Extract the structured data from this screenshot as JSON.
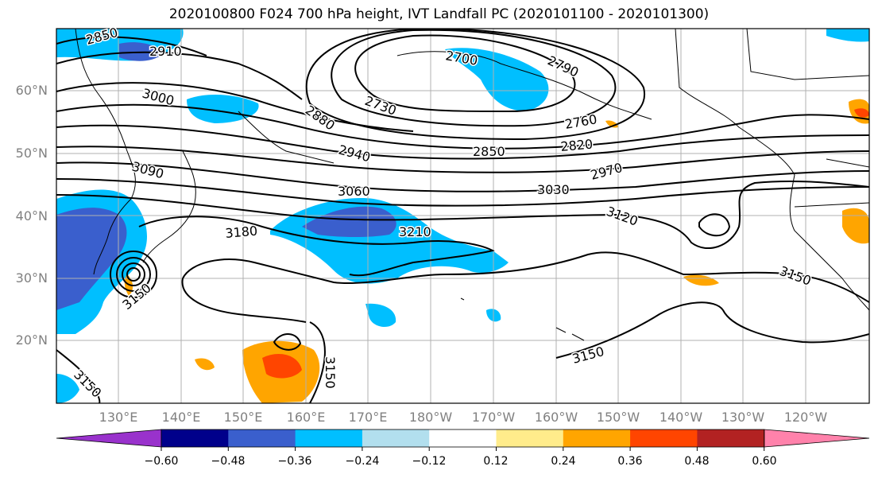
{
  "title": "2020100800 F024 700 hPa height, IVT Landfall PC (2020101100 - 2020101300)",
  "lat_labels": [
    "60°N",
    "50°N",
    "40°N",
    "30°N",
    "20°N"
  ],
  "lon_labels": [
    "130°E",
    "140°E",
    "150°E",
    "160°E",
    "170°E",
    "180°W",
    "170°W",
    "160°W",
    "150°W",
    "140°W",
    "130°W",
    "120°W"
  ],
  "contour_labels": [
    "2850",
    "2910",
    "3000",
    "2880",
    "2700",
    "2730",
    "2790",
    "2760",
    "2820",
    "2940",
    "2850",
    "3090",
    "2970",
    "3060",
    "3030",
    "3120",
    "3180",
    "3210",
    "3150",
    "3150",
    "3150",
    "3150",
    "3150"
  ],
  "colorbar": {
    "ticks": [
      "−0.60",
      "−0.48",
      "−0.36",
      "−0.24",
      "−0.12",
      "0.12",
      "0.24",
      "0.36",
      "0.48",
      "0.60"
    ],
    "colors": [
      "#9932cc",
      "#00008b",
      "#3a5fcd",
      "#00bfff",
      "#b2dfee",
      "#ffffff",
      "#ffec8b",
      "#ffa500",
      "#ff4500",
      "#b22222",
      "#ff82ab"
    ]
  },
  "colors": {
    "frame": "#000000",
    "grid": "#b0b0b0",
    "axis_label": "#808080"
  }
}
